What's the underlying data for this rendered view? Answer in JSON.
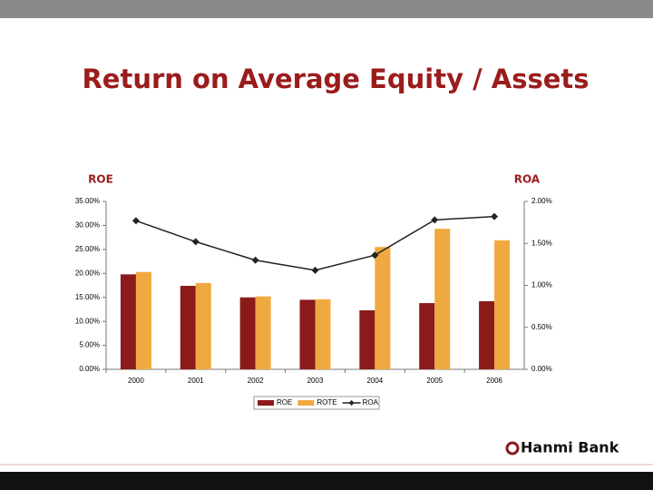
{
  "chart_data": {
    "type": "bar",
    "title": "Return on Average Equity / Assets",
    "ylabel": "ROE",
    "y2label": "ROA",
    "categories": [
      "2000",
      "2001",
      "2002",
      "2003",
      "2004",
      "2005",
      "2006"
    ],
    "series": [
      {
        "name": "ROE",
        "color": "#8b1a1a",
        "values": [
          19.8,
          17.4,
          15.0,
          14.5,
          12.3,
          13.8,
          14.2
        ]
      },
      {
        "name": "ROTE",
        "color": "#f0a940",
        "values": [
          20.3,
          18.0,
          15.2,
          14.6,
          25.5,
          29.3,
          26.9
        ]
      },
      {
        "name": "ROA",
        "type": "line",
        "axis": "y2",
        "color": "#222222",
        "values": [
          1.77,
          1.52,
          1.3,
          1.18,
          1.36,
          1.78,
          1.82
        ]
      }
    ],
    "ylim": [
      0,
      35
    ],
    "yticks": [
      {
        "value": 0,
        "label": "0.00%"
      },
      {
        "value": 5,
        "label": "5.00%"
      },
      {
        "value": 10,
        "label": "10.00%"
      },
      {
        "value": 15,
        "label": "15.00%"
      },
      {
        "value": 20,
        "label": "20.00%"
      },
      {
        "value": 25,
        "label": "25.00%"
      },
      {
        "value": 30,
        "label": "30.00%"
      },
      {
        "value": 35,
        "label": "35.00%"
      }
    ],
    "y2lim": [
      0,
      2
    ],
    "y2ticks": [
      {
        "value": 0,
        "label": "0.00%"
      },
      {
        "value": 0.5,
        "label": "0.50%"
      },
      {
        "value": 1,
        "label": "1.00%"
      },
      {
        "value": 1.5,
        "label": "1.50%"
      },
      {
        "value": 2,
        "label": "2.00%"
      }
    ],
    "grid": false,
    "legend": "bottom"
  },
  "logo": "Hanmi Bank"
}
